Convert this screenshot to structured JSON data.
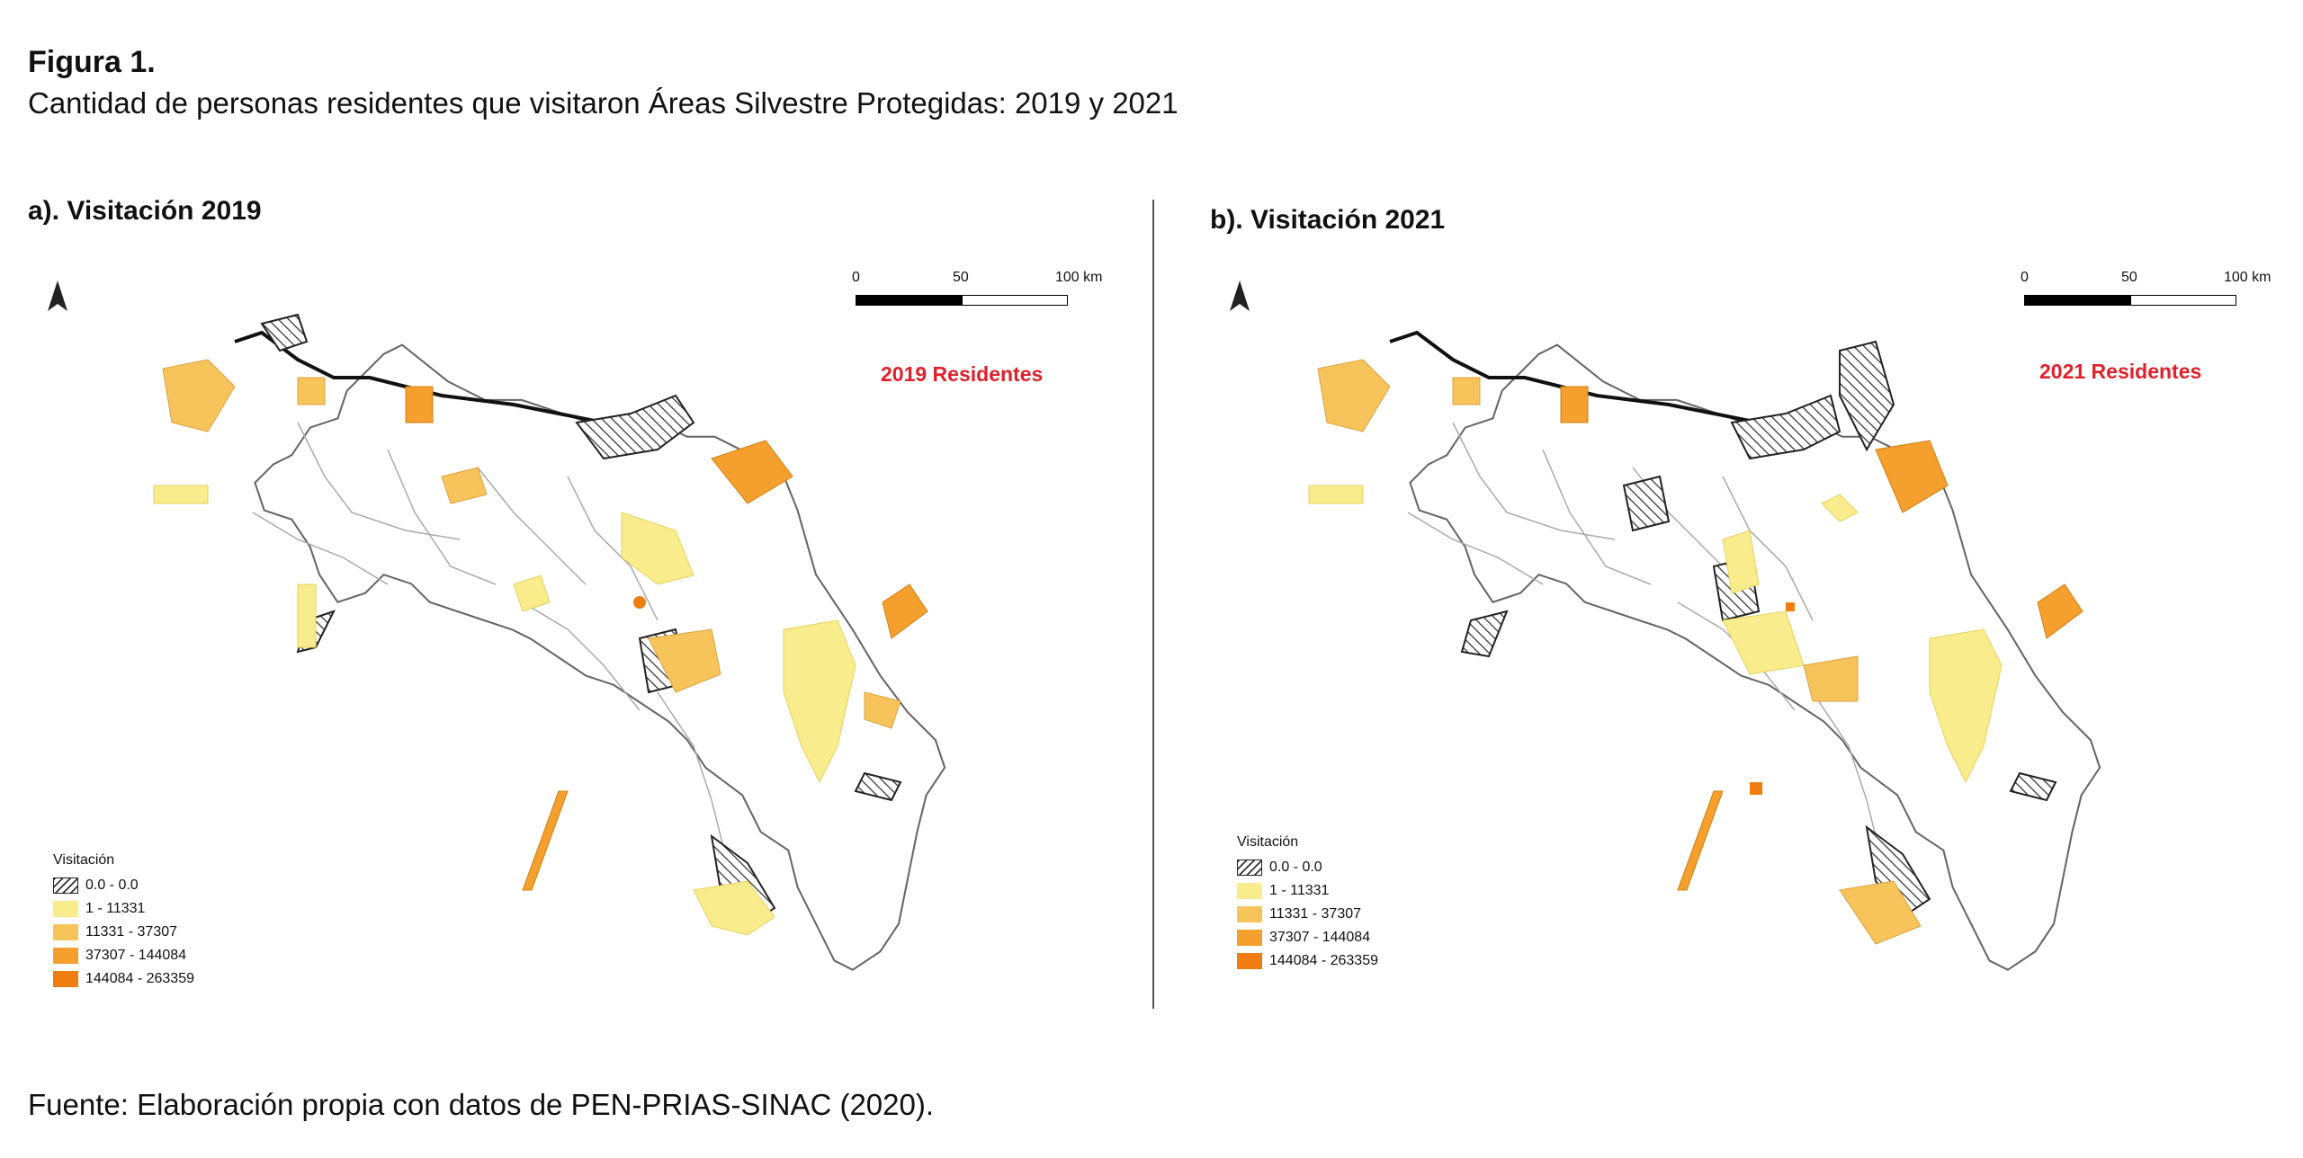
{
  "figure": {
    "title": "Figura 1.",
    "subtitle": "Cantidad de personas residentes que visitaron Áreas Silvestre Protegidas: 2019 y 2021",
    "source": "Fuente: Elaboración propia con datos de PEN-PRIAS-SINAC (2020)."
  },
  "panels": [
    {
      "title": "a). Visitación 2019",
      "year_label": "2019 Residentes"
    },
    {
      "title": "b). Visitación 2021",
      "year_label": "2021 Residentes"
    }
  ],
  "scale_bar": {
    "labels": [
      "0",
      "50",
      "100 km"
    ]
  },
  "legend": {
    "title": "Visitación",
    "classes": [
      {
        "label": "0.0 - 0.0",
        "style": "hatch"
      },
      {
        "label": "1 - 11331",
        "color": "#f8ec8c"
      },
      {
        "label": "11331 - 37307",
        "color": "#f6c45a"
      },
      {
        "label": "37307 - 144084",
        "color": "#f5a02e"
      },
      {
        "label": "144084 - 263359",
        "color": "#f07d10"
      }
    ]
  },
  "colors": {
    "accent_red": "#e0202a",
    "class_1": "#f8ec8c",
    "class_2": "#f6c45a",
    "class_3": "#f5a02e",
    "class_4": "#f07d10"
  }
}
